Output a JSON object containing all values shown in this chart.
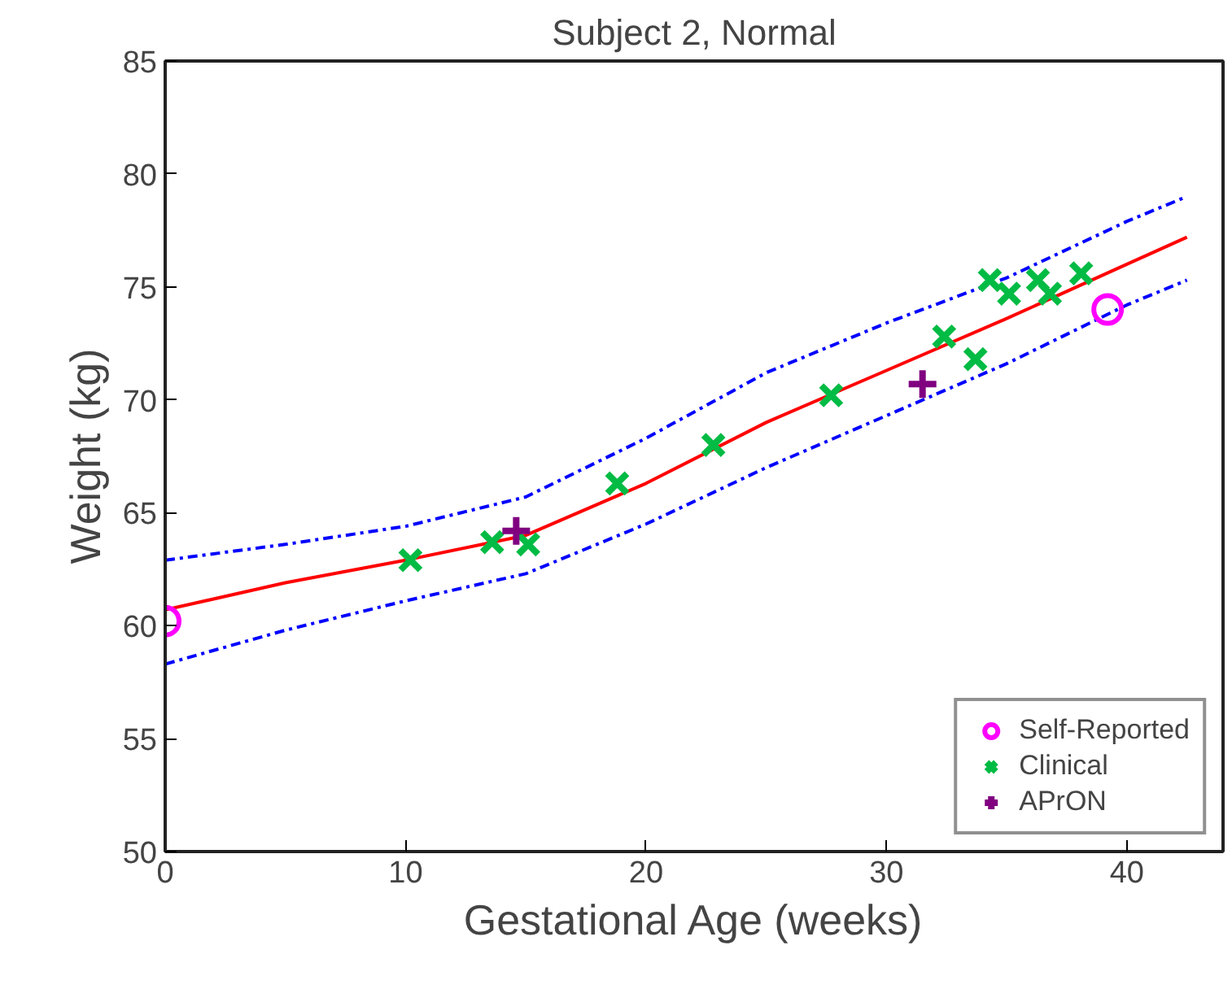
{
  "chart_data": {
    "type": "scatter",
    "title": "Subject 2, Normal",
    "xlabel": "Gestational Age (weeks)",
    "ylabel": "Weight (kg)",
    "xlim": [
      0,
      44
    ],
    "ylim": [
      50,
      85
    ],
    "xticks": [
      0,
      10,
      20,
      30,
      40
    ],
    "yticks": [
      50,
      55,
      60,
      65,
      70,
      75,
      80,
      85
    ],
    "grid": false,
    "legend": "bottom right",
    "series": [
      {
        "type": "line",
        "color": "#ff0000",
        "line_style": "solid",
        "x": [
          0,
          5,
          10,
          15,
          20,
          25,
          30,
          35,
          40,
          42.5
        ],
        "values": [
          60.7,
          61.9,
          62.9,
          64.0,
          66.3,
          69.0,
          71.3,
          73.6,
          76.0,
          77.2
        ]
      },
      {
        "type": "line",
        "color": "#0000ff",
        "line_style": "dashed",
        "x": [
          0,
          5,
          10,
          15,
          20,
          25,
          30,
          35,
          40,
          42.5
        ],
        "values": [
          62.9,
          63.6,
          64.4,
          65.7,
          68.3,
          71.2,
          73.4,
          75.4,
          77.9,
          79.0
        ]
      },
      {
        "type": "line",
        "color": "#0000ff",
        "line_style": "dashed",
        "x": [
          0,
          5,
          10,
          15,
          20,
          25,
          30,
          35,
          40,
          42.5
        ],
        "values": [
          58.3,
          59.8,
          61.1,
          62.3,
          64.5,
          67.0,
          69.3,
          71.6,
          74.2,
          75.3
        ]
      },
      {
        "name": "Self-Reported",
        "color": "#ff00ff",
        "marker": "circle",
        "x": [
          0,
          39.2
        ],
        "values": [
          60.2,
          74.0
        ]
      },
      {
        "name": "Clinical",
        "color": "#00bb44",
        "marker": "cross",
        "x": [
          10.2,
          13.6,
          15.1,
          18.8,
          22.8,
          27.7,
          32.4,
          33.7,
          34.3,
          35.1,
          36.3,
          36.8,
          38.1
        ],
        "values": [
          62.9,
          63.7,
          63.6,
          66.3,
          68.0,
          70.2,
          72.8,
          71.8,
          75.3,
          74.7,
          75.3,
          74.7,
          75.6
        ]
      },
      {
        "name": "APrON",
        "color": "#800080",
        "marker": "plus",
        "x": [
          14.6,
          31.5
        ],
        "values": [
          64.2,
          70.7
        ]
      }
    ]
  }
}
